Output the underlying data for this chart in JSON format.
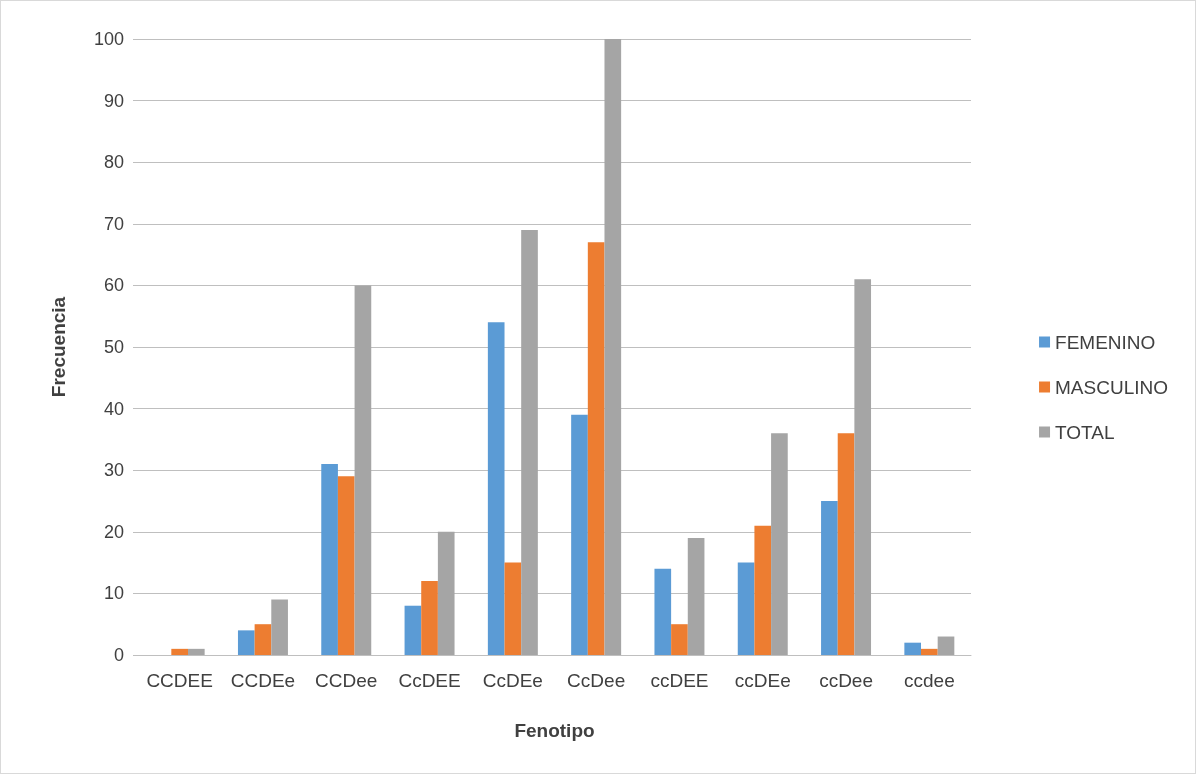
{
  "chart_data": {
    "type": "bar",
    "xlabel": "Fenotipo",
    "ylabel": "Frecuencia",
    "categories": [
      "CCDEE",
      "CCDEe",
      "CCDee",
      "CcDEE",
      "CcDEe",
      "CcDee",
      "ccDEE",
      "ccDEe",
      "ccDee",
      "ccdee"
    ],
    "series": [
      {
        "name": "FEMENINO",
        "color": "#5b9bd5",
        "values": [
          0,
          4,
          31,
          8,
          54,
          39,
          14,
          15,
          25,
          2
        ]
      },
      {
        "name": "MASCULINO",
        "color": "#ed7d31",
        "values": [
          1,
          5,
          29,
          12,
          15,
          67,
          5,
          21,
          36,
          1
        ]
      },
      {
        "name": "TOTAL",
        "color": "#a5a5a5",
        "values": [
          1,
          9,
          60,
          20,
          69,
          100,
          19,
          36,
          61,
          3
        ]
      }
    ],
    "ylim": [
      0,
      100
    ],
    "yticks": [
      0,
      10,
      20,
      30,
      40,
      50,
      60,
      70,
      80,
      90,
      100
    ],
    "grid": "y",
    "legend": "right"
  }
}
